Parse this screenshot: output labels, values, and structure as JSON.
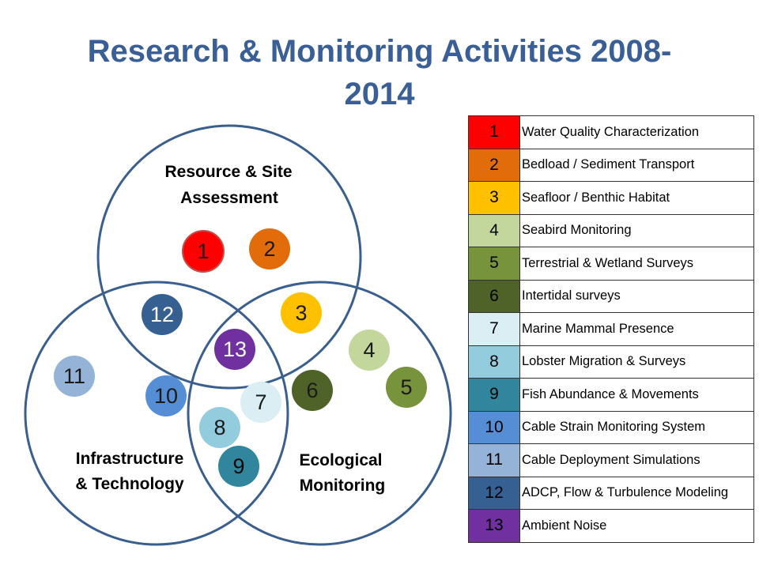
{
  "title": {
    "line1": "Research & Monitoring Activities 2008-",
    "line2": "2014"
  },
  "circles": {
    "top_label_1": "Resource & Site",
    "top_label_2": "Assessment",
    "left_label_1": "Infrastructure",
    "left_label_2": "& Technology",
    "right_label_1": "Ecological",
    "right_label_2": "Monitoring"
  },
  "activities": [
    {
      "num": "1",
      "label": "Water Quality Characterization",
      "color": "#ff0000"
    },
    {
      "num": "2",
      "label": "Bedload / Sediment  Transport",
      "color": "#e36c0a"
    },
    {
      "num": "3",
      "label": "Seafloor / Benthic Habitat",
      "color": "#ffc000"
    },
    {
      "num": "4",
      "label": "Seabird Monitoring",
      "color": "#c3d69b"
    },
    {
      "num": "5",
      "label": "Terrestrial & Wetland Surveys",
      "color": "#77933c"
    },
    {
      "num": "6",
      "label": "Intertidal surveys",
      "color": "#4f6228"
    },
    {
      "num": "7",
      "label": "Marine Mammal Presence",
      "color": "#dbeef4"
    },
    {
      "num": "8",
      "label": "Lobster Migration & Surveys",
      "color": "#93cddd"
    },
    {
      "num": "9",
      "label": "Fish Abundance & Movements",
      "color": "#31859c"
    },
    {
      "num": "10",
      "label": "Cable Strain Monitoring System",
      "color": "#558ed5"
    },
    {
      "num": "11",
      "label": "Cable Deployment Simulations",
      "color": "#95b3d7"
    },
    {
      "num": "12",
      "label": "ADCP, Flow & Turbulence Modeling",
      "color": "#376092"
    },
    {
      "num": "13",
      "label": "Ambient Noise",
      "color": "#7030a0"
    }
  ]
}
